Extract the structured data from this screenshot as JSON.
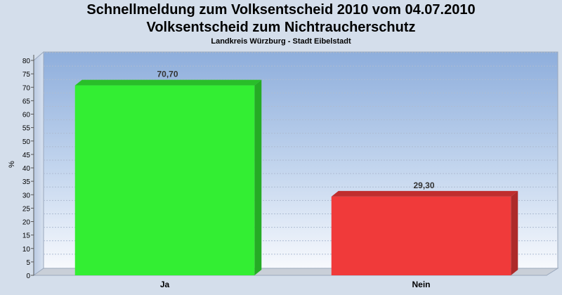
{
  "header": {
    "title_line1": "Schnellmeldung zum Volksentscheid 2010 vom 04.07.2010",
    "title_line2": "Volksentscheid zum Nichtraucherschutz",
    "subtitle": "Landkreis Würzburg - Stadt Eibelstadt"
  },
  "chart_data": {
    "type": "bar",
    "categories": [
      "Ja",
      "Nein"
    ],
    "values": [
      70.7,
      29.3
    ],
    "value_labels": [
      "70,70",
      "29,30"
    ],
    "colors": [
      "#33ee33",
      "#f03a3a"
    ],
    "ylabel": "%",
    "ylim": [
      0,
      80
    ],
    "yticks": [
      0,
      5,
      10,
      15,
      20,
      25,
      30,
      35,
      40,
      45,
      50,
      55,
      60,
      65,
      70,
      75,
      80
    ],
    "grid": true,
    "legend": "none"
  }
}
